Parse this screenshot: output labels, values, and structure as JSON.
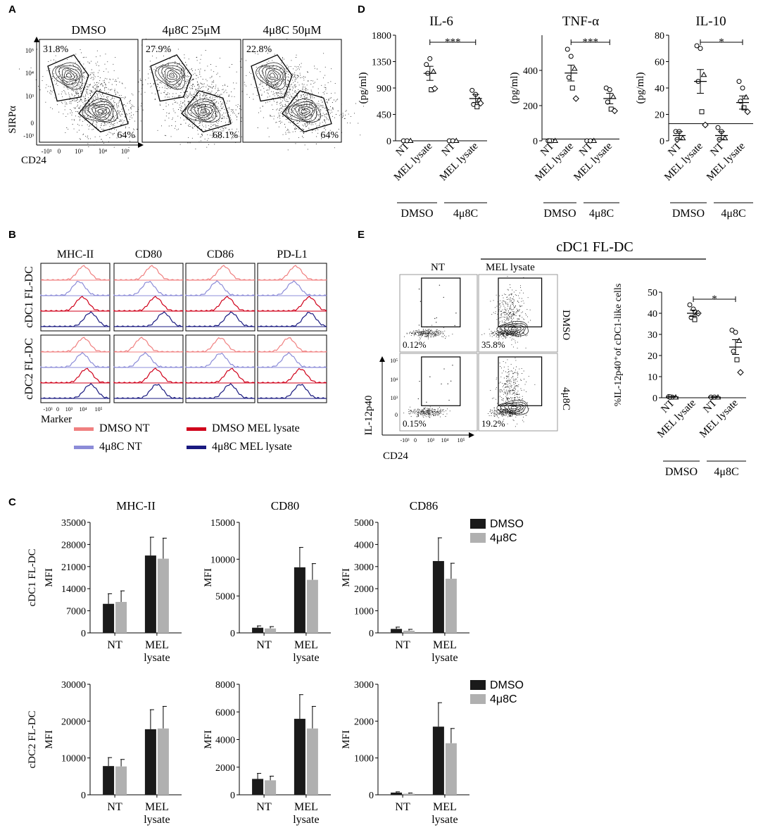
{
  "panel_letters": {
    "A": "A",
    "B": "B",
    "C": "C",
    "D": "D",
    "E": "E"
  },
  "panelA": {
    "ylabel": "SIRPα",
    "xlabel": "CD24",
    "yticks": [
      "10⁵",
      "10⁴",
      "10³",
      "0",
      "-10³"
    ],
    "xticks": [
      "-10³",
      "0",
      "10³",
      "10⁴",
      "10⁵"
    ],
    "plots": [
      {
        "title": "DMSO",
        "top_pct": "31.8%",
        "bottom_pct": "64%"
      },
      {
        "title": "4μ8C 25μM",
        "top_pct": "27.9%",
        "bottom_pct": "68.1%"
      },
      {
        "title": "4μ8C 50μM",
        "top_pct": "22.8%",
        "bottom_pct": "64%"
      }
    ]
  },
  "panelB": {
    "columns": [
      "MHC-II",
      "CD80",
      "CD86",
      "PD-L1"
    ],
    "rows": [
      "cDC1 FL-DC",
      "cDC2 FL-DC"
    ],
    "xlabel": "Marker",
    "xticks": [
      "-10³",
      "0",
      "10³",
      "10⁴",
      "10⁵"
    ],
    "legend": [
      {
        "label": "DMSO NT",
        "color": "#f08080"
      },
      {
        "label": "DMSO MEL lysate",
        "color": "#d0021b"
      },
      {
        "label": "4μ8C NT",
        "color": "#8c8cd8"
      },
      {
        "label": "4μ8C MEL lysate",
        "color": "#1a1a80"
      }
    ]
  },
  "panelE": {
    "title": "cDC1 FL-DC",
    "col_labels": [
      "NT",
      "MEL lysate"
    ],
    "row_labels": [
      "DMSO",
      "4μ8C"
    ],
    "pcts": [
      "0.12%",
      "35.8%",
      "0.15%",
      "19.2%"
    ],
    "ylabel": "IL-12p40",
    "xlabel": "CD24",
    "yticks": [
      "10⁵",
      "10⁴",
      "10³",
      "0"
    ],
    "xticks": [
      "-10³",
      "0",
      "10³",
      "10⁴",
      "10⁵"
    ]
  },
  "colors": {
    "dmso": "#1a1a1a",
    "c4u8": "#b0b0b0"
  },
  "chart_data": [
    {
      "id": "D-IL6",
      "type": "scatter",
      "title": "IL-6",
      "ylabel": "(pg/ml)",
      "categories": [
        "NT",
        "MEL lysate",
        "NT",
        "MEL lysate"
      ],
      "groups": [
        "DMSO",
        "4μ8C"
      ],
      "yticks": [
        0,
        450,
        900,
        1350,
        1800
      ],
      "ylim": [
        0,
        1800
      ],
      "hline": 0,
      "points": [
        [
          0,
          0,
          0
        ],
        [
          1300,
          1400,
          1180,
          1150,
          870,
          890
        ],
        [
          0,
          0,
          0
        ],
        [
          860,
          790,
          700,
          620,
          580,
          640
        ]
      ],
      "mean": [
        0,
        1150,
        0,
        720
      ],
      "sem": [
        0,
        120,
        0,
        70
      ],
      "sig": "***"
    },
    {
      "id": "D-TNF",
      "type": "scatter",
      "title": "TNF-α",
      "ylabel": "(pg/ml)",
      "categories": [
        "NT",
        "MEL lysate",
        "NT",
        "MEL lysate"
      ],
      "groups": [
        "DMSO",
        "4μ8C"
      ],
      "yticks": [
        0,
        200,
        400
      ],
      "ylim": [
        0,
        600
      ],
      "hline": 10,
      "points": [
        [
          0,
          0,
          0,
          0
        ],
        [
          520,
          480,
          410,
          360,
          300,
          240
        ],
        [
          0,
          0,
          0
        ],
        [
          300,
          290,
          250,
          220,
          180,
          170
        ]
      ],
      "mean": [
        0,
        0,
        0,
        0
      ],
      "sem": [
        0,
        0,
        0,
        0
      ],
      "mean_real": [
        0,
        385,
        0,
        240
      ],
      "sem_real": [
        0,
        45,
        0,
        30
      ],
      "sig": "***"
    },
    {
      "id": "D-IL10",
      "type": "scatter",
      "title": "IL-10",
      "ylabel": "(pg/ml)",
      "categories": [
        "NT",
        "MEL lysate",
        "NT",
        "MEL lysate"
      ],
      "groups": [
        "DMSO",
        "4μ8C"
      ],
      "yticks": [
        0,
        20,
        40,
        60,
        80
      ],
      "ylim": [
        0,
        80
      ],
      "hline": 13,
      "points": [
        [
          7,
          7,
          2,
          1
        ],
        [
          72,
          70,
          50,
          45,
          22,
          12
        ],
        [
          10,
          7,
          2,
          1
        ],
        [
          45,
          40,
          33,
          30,
          25,
          22
        ]
      ],
      "mean": [
        4,
        45,
        4,
        29
      ],
      "sem": [
        3,
        9,
        3,
        5
      ],
      "sig": "*"
    },
    {
      "id": "E-IL12",
      "type": "scatter",
      "title": "",
      "ylabel": "%IL-12p40⁺of cDC1-like cells",
      "categories": [
        "NT",
        "MEL lysate",
        "NT",
        "MEL lysate"
      ],
      "groups": [
        "DMSO",
        "4μ8C"
      ],
      "yticks": [
        0,
        10,
        20,
        30,
        40,
        50
      ],
      "ylim": [
        0,
        50
      ],
      "hline": null,
      "points": [
        [
          0.5,
          0.3,
          0.2,
          0.4
        ],
        [
          44,
          42,
          40,
          38,
          37,
          40
        ],
        [
          0.3,
          0.3,
          0.2
        ],
        [
          32,
          31,
          27,
          22,
          18,
          12
        ]
      ],
      "mean": [
        0.4,
        40,
        0.3,
        24
      ],
      "sem": [
        0.2,
        1.5,
        0.2,
        3.5
      ],
      "sig": "*"
    },
    {
      "id": "C-r1-MHCII",
      "type": "bar",
      "title": "MHC-II",
      "ylabel": "MFI",
      "row_label": "cDC1 FL-DC",
      "categories": [
        "NT",
        "MEL lysate"
      ],
      "ylim": [
        0,
        35000
      ],
      "yticks": [
        0,
        7000,
        14000,
        21000,
        28000,
        35000
      ],
      "series": [
        {
          "name": "DMSO",
          "values": [
            9200,
            24500
          ],
          "err": [
            3200,
            5800
          ]
        },
        {
          "name": "4μ8C",
          "values": [
            9800,
            23500
          ],
          "err": [
            3500,
            6500
          ]
        }
      ]
    },
    {
      "id": "C-r1-CD80",
      "type": "bar",
      "title": "CD80",
      "ylabel": "MFI",
      "row_label": "",
      "categories": [
        "NT",
        "MEL lysate"
      ],
      "ylim": [
        0,
        15000
      ],
      "yticks": [
        0,
        5000,
        10000,
        15000
      ],
      "series": [
        {
          "name": "DMSO",
          "values": [
            700,
            8900
          ],
          "err": [
            250,
            2700
          ]
        },
        {
          "name": "4μ8C",
          "values": [
            600,
            7200
          ],
          "err": [
            250,
            2200
          ]
        }
      ]
    },
    {
      "id": "C-r1-CD86",
      "type": "bar",
      "title": "CD86",
      "ylabel": "MFI",
      "row_label": "",
      "categories": [
        "NT",
        "MEL lysate"
      ],
      "ylim": [
        0,
        5000
      ],
      "yticks": [
        0,
        1000,
        2000,
        3000,
        4000,
        5000
      ],
      "series": [
        {
          "name": "DMSO",
          "values": [
            180,
            3250
          ],
          "err": [
            80,
            1050
          ]
        },
        {
          "name": "4μ8C",
          "values": [
            100,
            2450
          ],
          "err": [
            60,
            700
          ]
        }
      ]
    },
    {
      "id": "C-r2-MHCII",
      "type": "bar",
      "title": "",
      "ylabel": "MFI",
      "row_label": "cDC2 FL-DC",
      "categories": [
        "NT",
        "MEL lysate"
      ],
      "ylim": [
        0,
        30000
      ],
      "yticks": [
        0,
        10000,
        20000,
        30000
      ],
      "series": [
        {
          "name": "DMSO",
          "values": [
            7800,
            17800
          ],
          "err": [
            2300,
            5300
          ]
        },
        {
          "name": "4μ8C",
          "values": [
            7700,
            18000
          ],
          "err": [
            1900,
            6000
          ]
        }
      ]
    },
    {
      "id": "C-r2-CD80",
      "type": "bar",
      "title": "",
      "ylabel": "MFI",
      "row_label": "",
      "categories": [
        "NT",
        "MEL lysate"
      ],
      "ylim": [
        0,
        8000
      ],
      "yticks": [
        0,
        2000,
        4000,
        6000,
        8000
      ],
      "series": [
        {
          "name": "DMSO",
          "values": [
            1150,
            5500
          ],
          "err": [
            400,
            1750
          ]
        },
        {
          "name": "4μ8C",
          "values": [
            1050,
            4800
          ],
          "err": [
            300,
            1600
          ]
        }
      ]
    },
    {
      "id": "C-r2-CD86",
      "type": "bar",
      "title": "",
      "ylabel": "MFI",
      "row_label": "",
      "categories": [
        "NT",
        "MEL lysate"
      ],
      "ylim": [
        0,
        3000
      ],
      "yticks": [
        0,
        1000,
        2000,
        3000
      ],
      "series": [
        {
          "name": "DMSO",
          "values": [
            60,
            1850
          ],
          "err": [
            20,
            650
          ]
        },
        {
          "name": "4μ8C",
          "values": [
            30,
            1400
          ],
          "err": [
            20,
            400
          ]
        }
      ]
    }
  ],
  "barLegend": [
    {
      "name": "DMSO"
    },
    {
      "name": "4μ8C"
    }
  ],
  "tick_labels_wrap": {
    "MEL lysate": [
      "MEL",
      "lysate"
    ]
  }
}
